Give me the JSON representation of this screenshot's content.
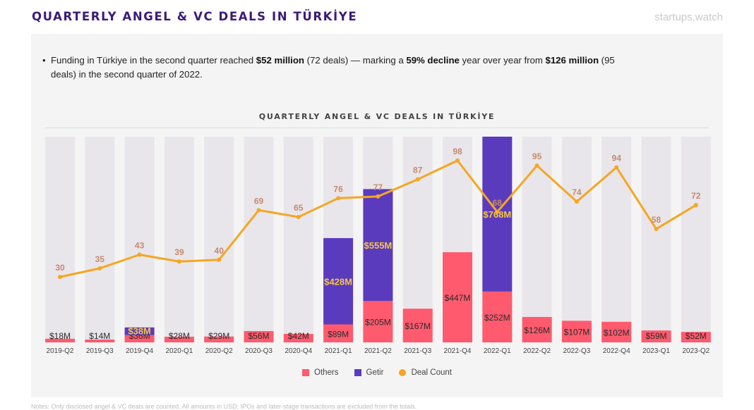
{
  "header": {
    "title": "QUARTERLY ANGEL & VC DEALS IN TÜRKİYE",
    "brand": "startups.watch"
  },
  "summary": {
    "bullet": "•",
    "p1": "Funding in Türkiye in the second quarter reached ",
    "b1": "$52 million",
    "p2": " (72 deals) — marking a ",
    "b2": "59% decline",
    "p3": " year over year from ",
    "b3": "$126 million",
    "p4": " (95 deals) in the second quarter of 2022."
  },
  "colors": {
    "others": "#ff5a6e",
    "getir": "#5b3bbd",
    "deal_count": "#f5a623",
    "bar_bg": "#e8e6ea",
    "bar_label": "#2b2b2b",
    "getir_label": "#f5c542",
    "count_label": "#c78a6e"
  },
  "chart_data": {
    "type": "bar",
    "title": "QUARTERLY ANGEL & VC DEALS IN TÜRKİYE",
    "categories": [
      "2019-Q2",
      "2019-Q3",
      "2019-Q4",
      "2020-Q1",
      "2020-Q2",
      "2020-Q3",
      "2020-Q4",
      "2021-Q1",
      "2021-Q2",
      "2021-Q3",
      "2021-Q4",
      "2022-Q1",
      "2022-Q2",
      "2022-Q3",
      "2022-Q4",
      "2023-Q1",
      "2023-Q2"
    ],
    "series": [
      {
        "name": "Others",
        "kind": "stacked-bar",
        "unit": "$M",
        "values": [
          18,
          14,
          36,
          28,
          29,
          56,
          42,
          89,
          205,
          167,
          447,
          252,
          126,
          107,
          102,
          59,
          52
        ]
      },
      {
        "name": "Getir",
        "kind": "stacked-bar",
        "unit": "$M",
        "values": [
          0,
          0,
          38,
          0,
          0,
          0,
          0,
          428,
          555,
          0,
          0,
          768,
          0,
          0,
          0,
          0,
          0
        ]
      },
      {
        "name": "Deal Count",
        "kind": "line",
        "values": [
          30,
          35,
          43,
          39,
          40,
          69,
          65,
          76,
          77,
          87,
          98,
          68,
          95,
          74,
          94,
          58,
          72
        ]
      }
    ],
    "bar_labels": [
      "$18M",
      "$14M",
      "$36M",
      "$28M",
      "$29M",
      "$56M",
      "$42M",
      "$89M",
      "$205M",
      "$167M",
      "$447M",
      "$252M",
      "$126M",
      "$107M",
      "$102M",
      "$59M",
      "$52M"
    ],
    "getir_labels": [
      "",
      "",
      "$38M",
      "",
      "",
      "",
      "",
      "$428M",
      "$555M",
      "",
      "",
      "$768M",
      "",
      "",
      "",
      "",
      ""
    ],
    "legend": [
      "Others",
      "Getir",
      "Deal Count"
    ],
    "legend_position": "bottom"
  },
  "footnote": "Notes: Only disclosed angel & VC deals are counted. All amounts in USD; IPOs and later-stage transactions are excluded from the totals."
}
